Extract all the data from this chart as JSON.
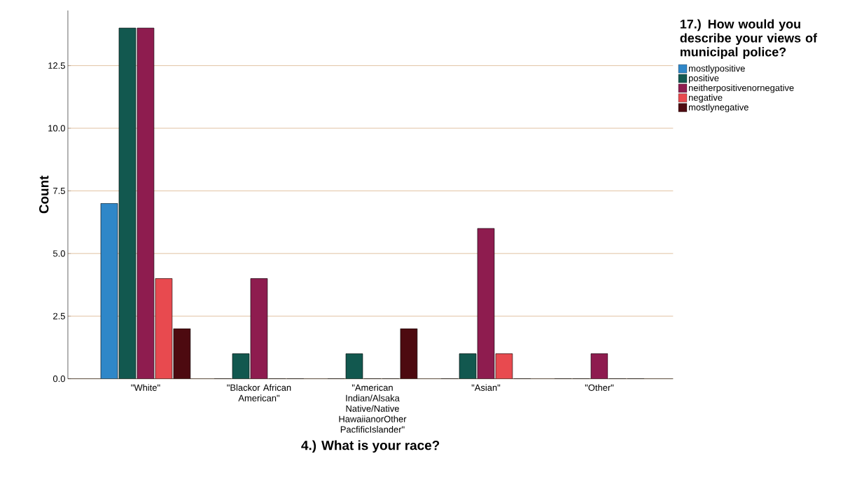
{
  "chart_data": {
    "type": "bar",
    "xlabel": "4.) What is your race?",
    "ylabel": "Count",
    "legend_title": "17.) How would you describe your views of municipal police?",
    "categories": [
      "\"White\"",
      "\"Blackor African American\"",
      "\"American Indian/Alsaka Native/Native HawaiianorOther PacfificIslander\"",
      "\"Asian\"",
      "\"Other\""
    ],
    "series": [
      {
        "name": "mostlypositive",
        "color": "#2f87c8",
        "values": [
          7,
          0,
          0,
          0,
          0
        ]
      },
      {
        "name": "positive",
        "color": "#12584f",
        "values": [
          14,
          1,
          1,
          1,
          0
        ]
      },
      {
        "name": "neitherpositivenornegative",
        "color": "#8e1c4f",
        "values": [
          14,
          4,
          0,
          6,
          1
        ]
      },
      {
        "name": "negative",
        "color": "#e84a4f",
        "values": [
          4,
          0,
          0,
          1,
          0
        ]
      },
      {
        "name": "mostlynegative",
        "color": "#4d0a10",
        "values": [
          2,
          0,
          2,
          0,
          0
        ]
      }
    ],
    "ylim": [
      0,
      14.7
    ],
    "yticks": [
      {
        "value": 0,
        "label": "0.0"
      },
      {
        "value": 2.5,
        "label": "2.5"
      },
      {
        "value": 5,
        "label": "5.0"
      },
      {
        "value": 7.5,
        "label": "7.5"
      },
      {
        "value": 10,
        "label": "10.0"
      },
      {
        "value": 12.5,
        "label": "12.5"
      }
    ],
    "grid": "y",
    "legend": "top right"
  }
}
